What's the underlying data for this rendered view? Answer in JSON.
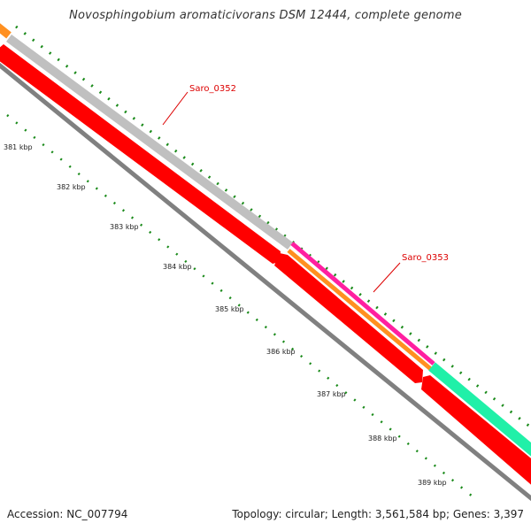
{
  "title": "Novosphingobium aromaticivorans DSM 12444, complete genome",
  "footer": {
    "accession": "Accession: NC_007794",
    "summary": "Topology: circular; Length: 3,561,584 bp; Genes: 3,397"
  },
  "ticks": [
    "381 kbp",
    "382 kbp",
    "383 kbp",
    "384 kbp",
    "385 kbp",
    "386 kbp",
    "387 kbp",
    "388 kbp",
    "389 kbp"
  ],
  "genes": [
    {
      "name": "Saro_0352"
    },
    {
      "name": "Saro_0353"
    }
  ],
  "colors": {
    "backbone": "#808080",
    "cds": "#ff0000",
    "gene": "#c0c0c0",
    "orange": "#ff9020",
    "magenta": "#ff1fa0",
    "teal": "#20f0a8",
    "tick": "#1a8a1a",
    "label": "#dd0000"
  }
}
